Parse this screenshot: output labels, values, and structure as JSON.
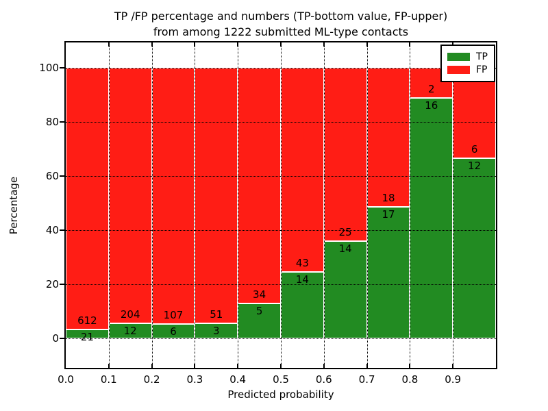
{
  "title": {
    "line1": "TP /FP percentage and numbers (TP-bottom value, FP-upper)",
    "line2": "from among 1222 submitted ML-type contacts"
  },
  "axes": {
    "xlabel": "Predicted probability",
    "ylabel": "Percentage",
    "ytick_labels": [
      "0",
      "20",
      "40",
      "60",
      "80",
      "100"
    ],
    "ytick_values": [
      0,
      20,
      40,
      60,
      80,
      100
    ],
    "xtick_labels": [
      "0.0",
      "0.1",
      "0.2",
      "0.3",
      "0.4",
      "0.5",
      "0.6",
      "0.7",
      "0.8",
      "0.9"
    ],
    "xtick_values": [
      0.0,
      0.1,
      0.2,
      0.3,
      0.4,
      0.5,
      0.6,
      0.7,
      0.8,
      0.9
    ],
    "xlim": [
      0.0,
      1.0
    ],
    "ylim": [
      -10.9,
      109.5
    ],
    "grid": "dotted black, horizontal and vertical"
  },
  "legend": {
    "position": "upper right",
    "items": [
      {
        "label": "TP",
        "color": "#228b22"
      },
      {
        "label": "FP",
        "color": "#ff1d15"
      }
    ]
  },
  "colors": {
    "tp_green": "#228b22",
    "fp_red": "#ff1d15",
    "bar_edge": "#ffffff",
    "text": "#000000",
    "background": "#ffffff"
  },
  "chart_data": {
    "type": "bar",
    "stacked": true,
    "normalized_to_percent": 100,
    "title": "TP /FP percentage and numbers (TP-bottom value, FP-upper) from among 1222 submitted ML-type contacts",
    "xlabel": "Predicted probability",
    "ylabel": "Percentage",
    "total_contacts": 1222,
    "bin_left_edges": [
      0.0,
      0.1,
      0.2,
      0.3,
      0.4,
      0.5,
      0.6,
      0.7,
      0.8,
      0.9
    ],
    "bin_width": 0.1,
    "series": [
      {
        "name": "TP",
        "color": "#228b22",
        "counts": [
          21,
          12,
          6,
          3,
          5,
          14,
          14,
          17,
          16,
          12
        ]
      },
      {
        "name": "FP",
        "color": "#ff1d15",
        "counts": [
          612,
          204,
          107,
          51,
          34,
          43,
          25,
          18,
          2,
          6
        ]
      }
    ],
    "tp_percent_of_bin": [
      3.32,
      5.56,
      5.31,
      5.56,
      12.82,
      24.56,
      35.9,
      48.57,
      88.89,
      66.67
    ],
    "fp_percent_of_bin": [
      96.68,
      94.44,
      94.69,
      94.44,
      87.18,
      75.44,
      64.1,
      51.43,
      11.11,
      33.33
    ],
    "legend_position": "upper right"
  }
}
